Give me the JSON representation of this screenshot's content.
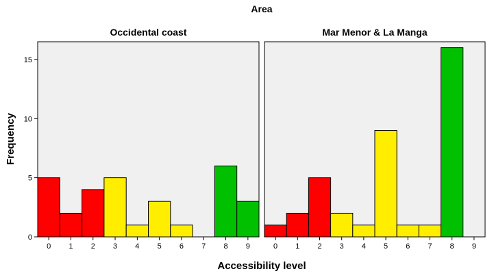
{
  "chart_data": {
    "type": "bar",
    "title": "Area",
    "xlabel": "Accessibility level",
    "ylabel": "Frequency",
    "ylim": [
      0,
      16.5
    ],
    "y_ticks": [
      0,
      5,
      10,
      15
    ],
    "categories": [
      "0",
      "1",
      "2",
      "3",
      "4",
      "5",
      "6",
      "7",
      "8",
      "9"
    ],
    "colors": {
      "red": "#ff0000",
      "yellow": "#ffee00",
      "green": "#00c000",
      "panel_bg": "#f0f0f0"
    },
    "category_colors": [
      "red",
      "red",
      "red",
      "yellow",
      "yellow",
      "yellow",
      "yellow",
      "yellow",
      "green",
      "green"
    ],
    "panels": [
      {
        "name": "Occidental coast",
        "values": [
          5,
          2,
          4,
          5,
          1,
          3,
          1,
          0,
          6,
          3
        ]
      },
      {
        "name": "Mar Menor & La Manga",
        "values": [
          1,
          2,
          5,
          2,
          1,
          9,
          1,
          1,
          16,
          0
        ]
      }
    ]
  }
}
